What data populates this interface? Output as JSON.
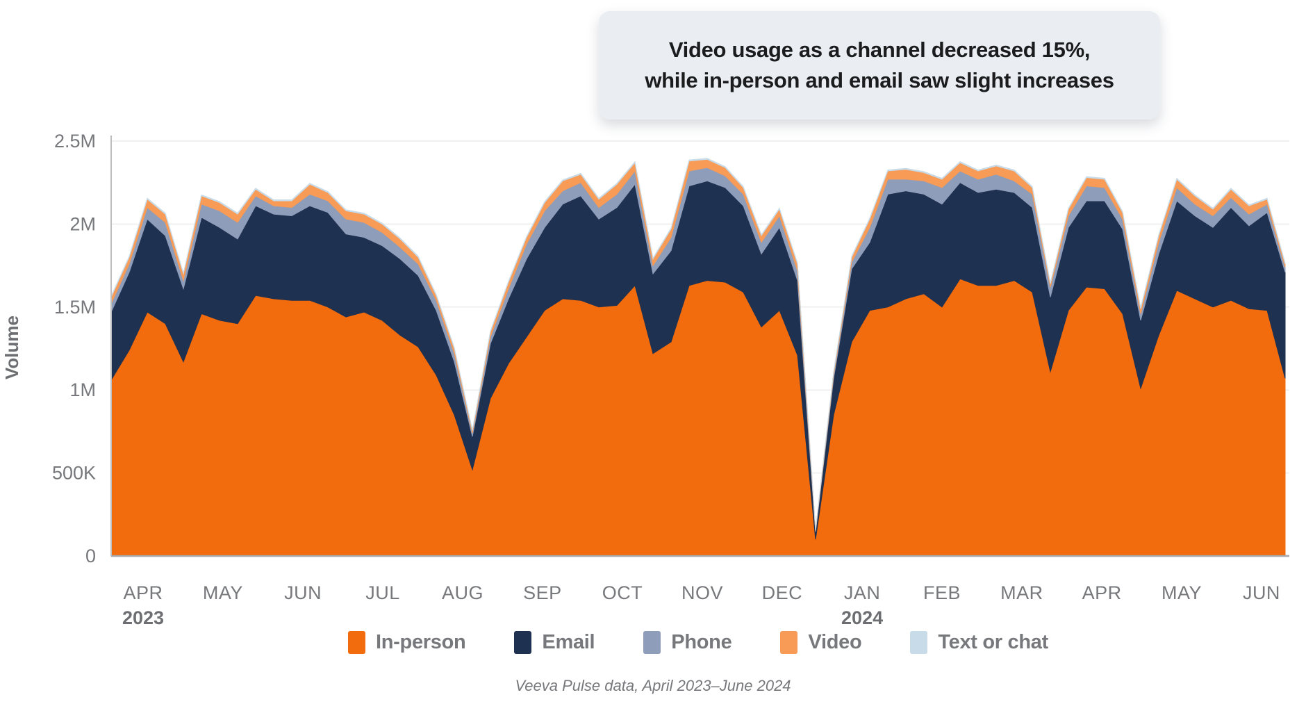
{
  "callout": {
    "line1": "Video usage as a channel decreased 15%,",
    "line2": "while in-person and email saw slight increases"
  },
  "source_note": "Veeva Pulse data, April 2023–June 2024",
  "colors": {
    "in_person": "#f26b0c",
    "email": "#1f3150",
    "phone": "#8e9dba",
    "video": "#f79b57",
    "text_or_chat": "#c7dbe8",
    "grid": "#ececec",
    "axis_bottom": "#a7a9ac",
    "axis_left": "#bcbec0",
    "tick_text": "#77787b",
    "year_text": "#6d6e71"
  },
  "legend": {
    "items": [
      {
        "label": "In-person",
        "color": "#f26b0c"
      },
      {
        "label": "Email",
        "color": "#1f3150"
      },
      {
        "label": "Phone",
        "color": "#8e9dba"
      },
      {
        "label": "Video",
        "color": "#f79b57"
      },
      {
        "label": "Text or chat",
        "color": "#c7dbe8"
      }
    ]
  },
  "chart_data": {
    "type": "area",
    "stacked": true,
    "title": "Video usage as a channel decreased 15%, while in-person and email saw slight increases",
    "xlabel": "",
    "ylabel": "Volume",
    "ylim": [
      0,
      2500000
    ],
    "grid": true,
    "legend_position": "bottom",
    "unit": "millions",
    "y_ticks": [
      {
        "value": 0,
        "label": "0"
      },
      {
        "value": 0.5,
        "label": "500K"
      },
      {
        "value": 1,
        "label": "1M"
      },
      {
        "value": 1.5,
        "label": "1.5M"
      },
      {
        "value": 2,
        "label": "2M"
      },
      {
        "value": 2.5,
        "label": "2.5M"
      }
    ],
    "x_months": [
      {
        "label": "APR",
        "year": "2023",
        "week": 1.77
      },
      {
        "label": "MAY",
        "week": 6.19
      },
      {
        "label": "JUN",
        "week": 10.62
      },
      {
        "label": "JUL",
        "week": 15.04
      },
      {
        "label": "AUG",
        "week": 19.46
      },
      {
        "label": "SEP",
        "week": 23.88
      },
      {
        "label": "OCT",
        "week": 28.31
      },
      {
        "label": "NOV",
        "week": 32.73
      },
      {
        "label": "DEC",
        "week": 37.15
      },
      {
        "label": "JAN",
        "year": "2024",
        "week": 41.58
      },
      {
        "label": "FEB",
        "week": 46.0
      },
      {
        "label": "MAR",
        "week": 50.42
      },
      {
        "label": "APR",
        "week": 54.85
      },
      {
        "label": "MAY",
        "week": 59.27
      },
      {
        "label": "JUN",
        "week": 63.69
      }
    ],
    "x_unit": "week (Apr 2023 – Jun 2024)",
    "series": [
      {
        "name": "In-person",
        "color": "#f26b0c",
        "values": [
          1.06,
          1.24,
          1.47,
          1.4,
          1.17,
          1.46,
          1.42,
          1.4,
          1.57,
          1.55,
          1.54,
          1.54,
          1.5,
          1.44,
          1.47,
          1.42,
          1.33,
          1.26,
          1.09,
          0.85,
          0.52,
          0.95,
          1.16,
          1.32,
          1.48,
          1.55,
          1.54,
          1.5,
          1.51,
          1.63,
          1.22,
          1.29,
          1.63,
          1.66,
          1.65,
          1.59,
          1.38,
          1.48,
          1.21,
          0.1,
          0.85,
          1.29,
          1.48,
          1.5,
          1.55,
          1.58,
          1.5,
          1.67,
          1.63,
          1.63,
          1.66,
          1.59,
          1.11,
          1.48,
          1.62,
          1.61,
          1.46,
          1.01,
          1.33,
          1.6,
          1.55,
          1.5,
          1.54,
          1.49,
          1.48,
          1.07
        ]
      },
      {
        "name": "Email",
        "color": "#1f3150",
        "values": [
          0.41,
          0.47,
          0.56,
          0.53,
          0.44,
          0.58,
          0.56,
          0.51,
          0.54,
          0.51,
          0.51,
          0.57,
          0.57,
          0.5,
          0.45,
          0.45,
          0.46,
          0.43,
          0.39,
          0.32,
          0.2,
          0.33,
          0.39,
          0.47,
          0.5,
          0.57,
          0.63,
          0.53,
          0.59,
          0.61,
          0.48,
          0.55,
          0.6,
          0.6,
          0.57,
          0.52,
          0.44,
          0.5,
          0.45,
          0.045,
          0.22,
          0.44,
          0.41,
          0.68,
          0.65,
          0.6,
          0.62,
          0.58,
          0.56,
          0.58,
          0.53,
          0.51,
          0.45,
          0.5,
          0.52,
          0.53,
          0.51,
          0.41,
          0.49,
          0.54,
          0.5,
          0.48,
          0.56,
          0.5,
          0.59,
          0.64
        ]
      },
      {
        "name": "Phone",
        "color": "#8e9dba",
        "values": [
          0.05,
          0.05,
          0.07,
          0.08,
          0.05,
          0.08,
          0.1,
          0.1,
          0.06,
          0.05,
          0.05,
          0.07,
          0.07,
          0.09,
          0.09,
          0.08,
          0.07,
          0.07,
          0.06,
          0.05,
          0.02,
          0.04,
          0.06,
          0.09,
          0.1,
          0.08,
          0.08,
          0.07,
          0.08,
          0.08,
          0.05,
          0.08,
          0.09,
          0.08,
          0.07,
          0.07,
          0.07,
          0.07,
          0.06,
          0.005,
          0.02,
          0.04,
          0.09,
          0.09,
          0.07,
          0.08,
          0.1,
          0.07,
          0.08,
          0.09,
          0.07,
          0.08,
          0.06,
          0.07,
          0.09,
          0.08,
          0.06,
          0.04,
          0.07,
          0.08,
          0.07,
          0.07,
          0.06,
          0.07,
          0.05,
          0.03
        ]
      },
      {
        "name": "Video",
        "color": "#f79b57",
        "values": [
          0.04,
          0.04,
          0.05,
          0.05,
          0.04,
          0.05,
          0.05,
          0.05,
          0.04,
          0.03,
          0.04,
          0.06,
          0.05,
          0.05,
          0.05,
          0.05,
          0.05,
          0.04,
          0.03,
          0.03,
          0.015,
          0.03,
          0.04,
          0.04,
          0.05,
          0.06,
          0.05,
          0.05,
          0.06,
          0.05,
          0.04,
          0.05,
          0.06,
          0.05,
          0.05,
          0.04,
          0.04,
          0.04,
          0.04,
          0.005,
          0.015,
          0.03,
          0.05,
          0.05,
          0.06,
          0.05,
          0.05,
          0.05,
          0.05,
          0.05,
          0.06,
          0.04,
          0.02,
          0.04,
          0.05,
          0.05,
          0.04,
          0.03,
          0.04,
          0.05,
          0.05,
          0.04,
          0.05,
          0.05,
          0.03,
          0.02
        ]
      },
      {
        "name": "Text or chat",
        "color": "#c7dbe8",
        "values": [
          0.006,
          0.006,
          0.006,
          0.006,
          0.006,
          0.006,
          0.006,
          0.006,
          0.006,
          0.006,
          0.006,
          0.006,
          0.006,
          0.006,
          0.006,
          0.006,
          0.006,
          0.006,
          0.006,
          0.006,
          0.006,
          0.006,
          0.006,
          0.006,
          0.006,
          0.006,
          0.006,
          0.006,
          0.006,
          0.006,
          0.006,
          0.006,
          0.006,
          0.006,
          0.006,
          0.006,
          0.006,
          0.006,
          0.006,
          0.002,
          0.006,
          0.006,
          0.006,
          0.006,
          0.006,
          0.006,
          0.006,
          0.006,
          0.006,
          0.006,
          0.006,
          0.006,
          0.006,
          0.006,
          0.006,
          0.006,
          0.006,
          0.006,
          0.006,
          0.006,
          0.006,
          0.006,
          0.006,
          0.006,
          0.006,
          0.006
        ]
      }
    ]
  }
}
